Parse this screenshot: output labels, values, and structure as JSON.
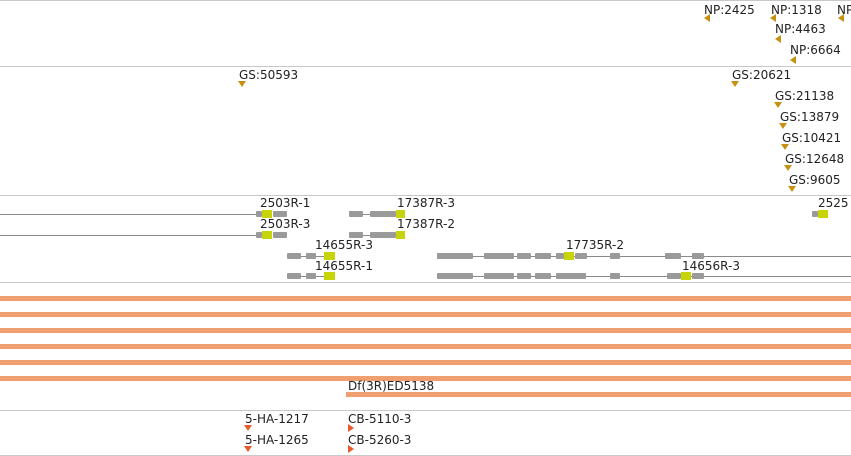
{
  "tracks": {
    "np": {
      "labels": [
        "NP:2425",
        "NP:1318",
        "NP",
        "NP:4463",
        "NP:6664"
      ]
    },
    "gs": {
      "labels": [
        "GS:50593",
        "GS:20621",
        "GS:21138",
        "GS:13879",
        "GS:10421",
        "GS:12648",
        "GS:9605"
      ]
    },
    "transcripts": {
      "labels": [
        "2503R-1",
        "17387R-3",
        "2525",
        "2503R-3",
        "17387R-2",
        "14655R-3",
        "17735R-2",
        "14655R-1",
        "14656R-3"
      ]
    },
    "deficiency": {
      "label": "Df(3R)ED5138"
    },
    "insertions": {
      "labels": [
        "5-HA-1217",
        "CB-5110-3",
        "5-HA-1265",
        "CB-5260-3"
      ]
    }
  },
  "colors": {
    "gold": "#c89010",
    "red": "#e85a2a",
    "salmon": "#f0a070",
    "exon": "#9a9a9a",
    "utr": "#c8d40a",
    "separator": "#c8c8c8"
  }
}
